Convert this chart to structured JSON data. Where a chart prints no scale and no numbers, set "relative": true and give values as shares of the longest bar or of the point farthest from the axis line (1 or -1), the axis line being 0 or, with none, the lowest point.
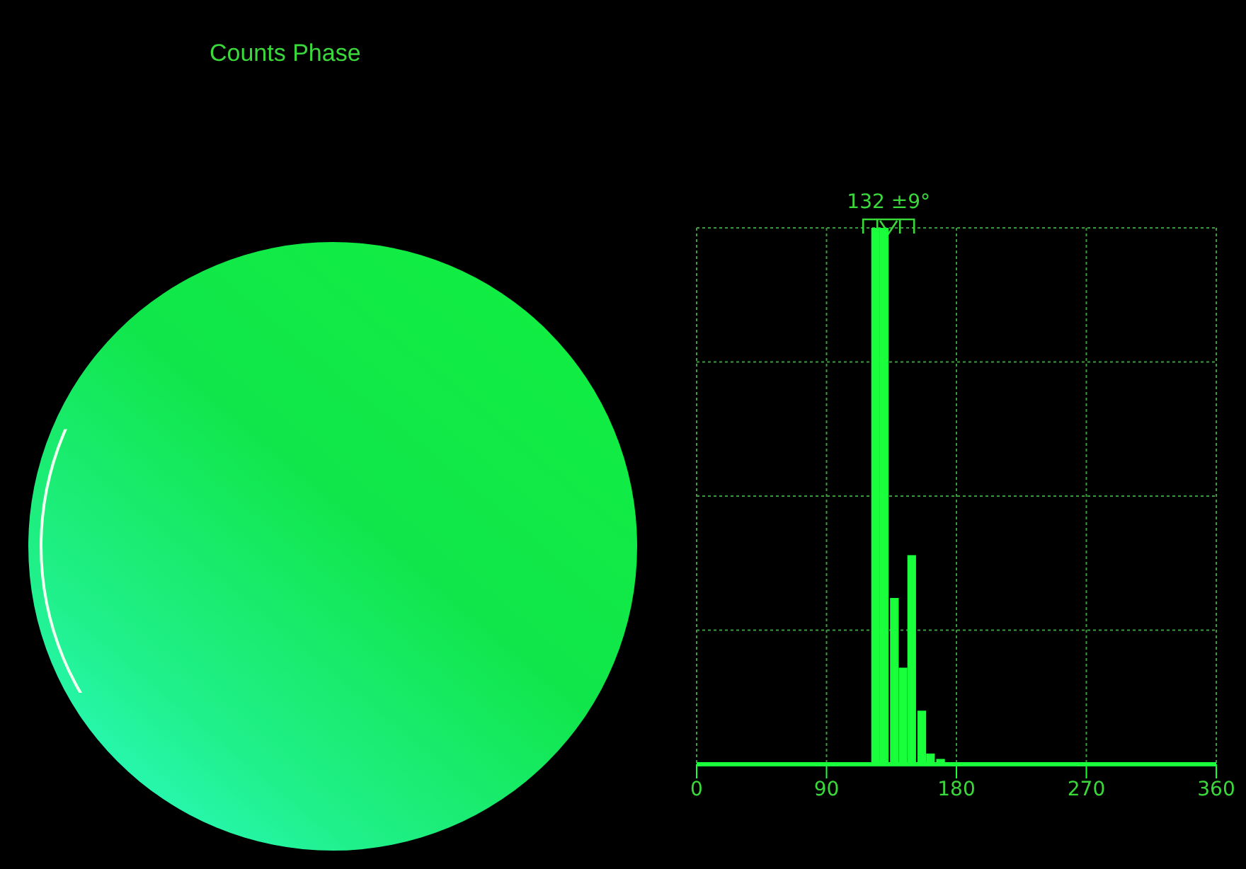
{
  "chart_data": {
    "type": "bar",
    "title": "Counts Phase",
    "x": [
      124,
      130,
      137,
      143,
      149,
      156,
      162,
      169
    ],
    "values": [
      1,
      1,
      0.31,
      0.18,
      0.39,
      0.1,
      0.02,
      0.01
    ],
    "relative": true,
    "color": "#1aff3c",
    "xlim": [
      0,
      360
    ],
    "xticks": [
      0,
      90,
      180,
      270,
      360
    ],
    "grid": true,
    "annotations": [
      "132 ±9°"
    ]
  }
}
